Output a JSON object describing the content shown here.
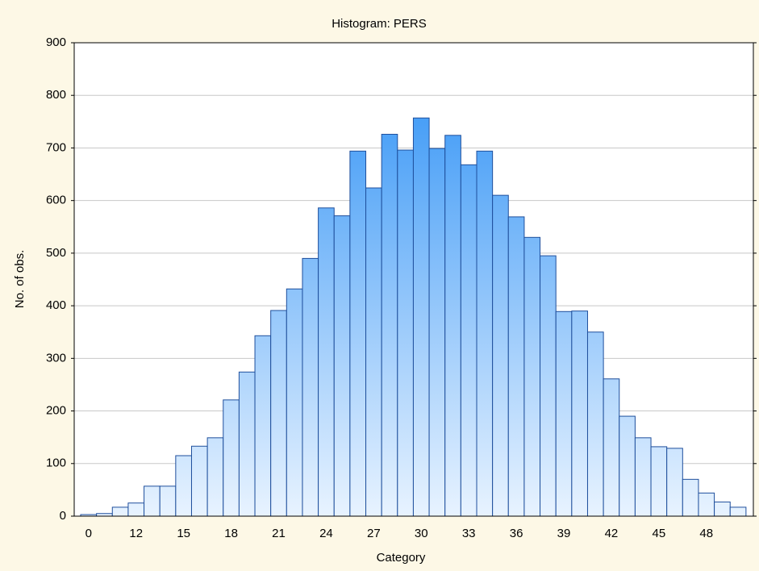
{
  "chart_data": {
    "type": "bar",
    "title": "Histogram: PERS",
    "x_label": "Category",
    "y_label": "No. of obs.",
    "categories": [
      "0",
      null,
      null,
      "12",
      null,
      null,
      "15",
      null,
      null,
      "18",
      null,
      null,
      "21",
      null,
      null,
      "24",
      null,
      null,
      "27",
      null,
      null,
      "30",
      null,
      null,
      "33",
      null,
      null,
      "36",
      null,
      null,
      "39",
      null,
      null,
      "42",
      null,
      null,
      "45",
      null,
      null,
      "48",
      null,
      null
    ],
    "values": [
      3,
      5,
      17,
      25,
      57,
      57,
      115,
      133,
      149,
      221,
      274,
      343,
      391,
      432,
      490,
      586,
      571,
      694,
      624,
      726,
      696,
      757,
      699,
      724,
      668,
      694,
      610,
      569,
      530,
      495,
      389,
      390,
      350,
      261,
      190,
      149,
      132,
      129,
      70,
      44,
      27,
      17
    ],
    "color": "#2a8ff5",
    "ylim": [
      0,
      900
    ],
    "yticks": [
      0,
      100,
      200,
      300,
      400,
      500,
      600,
      700,
      800,
      900
    ],
    "grid": true
  }
}
